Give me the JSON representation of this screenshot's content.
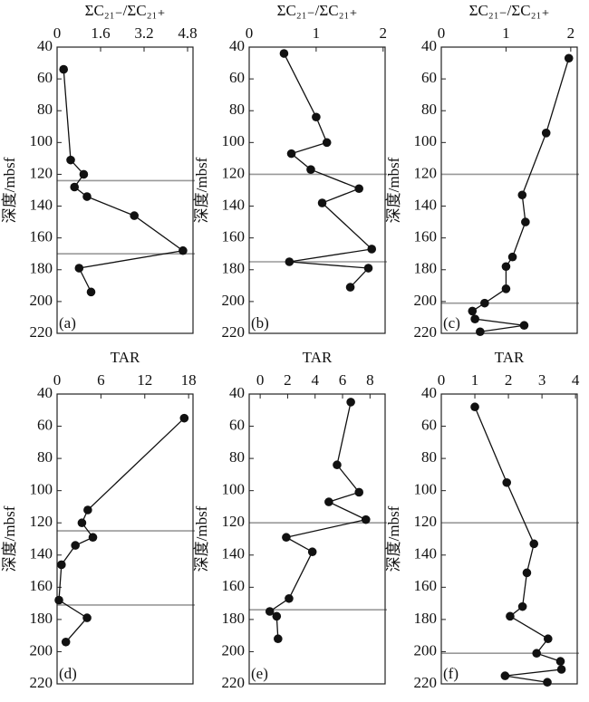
{
  "chart_data": [
    {
      "type": "line",
      "xlabel": "ΣC₂₁₋/ΣC₂₁₊",
      "ylabel": "深度/mbsf",
      "panel_label": "(a)",
      "xlim": [
        0,
        5
      ],
      "xticks": [
        0,
        1.6,
        3.2,
        4.8
      ],
      "ylim": [
        40,
        220
      ],
      "yticks": [
        40,
        60,
        80,
        100,
        120,
        140,
        160,
        180,
        200,
        220
      ],
      "color": "#111",
      "line_color": "#999",
      "hlines": [
        124,
        170
      ],
      "values": [
        0.24,
        0.5,
        0.98,
        0.64,
        1.1,
        2.84,
        4.63,
        0.81,
        1.25
      ],
      "depth": [
        54,
        111,
        120,
        128,
        134,
        146,
        168,
        179,
        194
      ]
    },
    {
      "type": "line",
      "xlabel": "ΣC₂₁₋/ΣC₂₁₊",
      "ylabel": "深度/mbsf",
      "panel_label": "(b)",
      "xlim": [
        0,
        2.03
      ],
      "xticks": [
        0,
        1,
        2
      ],
      "ylim": [
        40,
        220
      ],
      "yticks": [
        40,
        60,
        80,
        100,
        120,
        140,
        160,
        180,
        200,
        220
      ],
      "color": "#111",
      "line_color": "#999",
      "hlines": [
        120,
        175
      ],
      "values": [
        0.52,
        1.0,
        1.16,
        0.63,
        0.92,
        1.64,
        1.09,
        1.83,
        0.6,
        1.78,
        1.51
      ],
      "depth": [
        44,
        84,
        100,
        107,
        117,
        129,
        138,
        167,
        175,
        179,
        191
      ]
    },
    {
      "type": "line",
      "xlabel": "ΣC₂₁₋/ΣC₂₁₊",
      "ylabel": "深度/mbsf",
      "panel_label": "(c)",
      "xlim": [
        0,
        2.1
      ],
      "xticks": [
        0,
        1,
        2
      ],
      "ylim": [
        40,
        220
      ],
      "yticks": [
        40,
        60,
        80,
        100,
        120,
        140,
        160,
        180,
        200,
        220
      ],
      "color": "#111",
      "line_color": "#999",
      "hlines": [
        120,
        201
      ],
      "values": [
        1.97,
        1.62,
        1.25,
        1.3,
        1.1,
        1.0,
        1.0,
        0.67,
        0.48,
        0.52,
        1.28,
        0.6
      ],
      "depth": [
        47,
        94,
        133,
        150,
        172,
        178,
        192,
        201,
        206,
        211,
        215,
        219
      ]
    },
    {
      "type": "line",
      "xlabel": "TAR",
      "ylabel": "深度/mbsf",
      "panel_label": "(d)",
      "xlim": [
        0,
        18.6
      ],
      "xticks": [
        0,
        6,
        12,
        18
      ],
      "ylim": [
        40,
        220
      ],
      "yticks": [
        40,
        60,
        80,
        100,
        120,
        140,
        160,
        180,
        200,
        220
      ],
      "color": "#111",
      "line_color": "#999",
      "hlines": [
        125,
        171
      ],
      "values": [
        17.4,
        4.2,
        3.4,
        4.9,
        2.5,
        0.6,
        0.25,
        4.1,
        1.2
      ],
      "depth": [
        55,
        112,
        120,
        129,
        134,
        146,
        168,
        179,
        194
      ]
    },
    {
      "type": "line",
      "xlabel": "TAR",
      "ylabel": "深度/mbsf",
      "panel_label": "(e)",
      "xlim": [
        -0.8,
        9.1
      ],
      "xticks": [
        0,
        2,
        4,
        6,
        8
      ],
      "ylim": [
        40,
        220
      ],
      "yticks": [
        40,
        60,
        80,
        100,
        120,
        140,
        160,
        180,
        200,
        220
      ],
      "color": "#111",
      "line_color": "#999",
      "hlines": [
        120,
        174
      ],
      "values": [
        6.6,
        5.6,
        7.2,
        5.0,
        7.7,
        1.9,
        3.8,
        2.1,
        0.7,
        1.2,
        1.3
      ],
      "depth": [
        45,
        84,
        101,
        107,
        118,
        129,
        138,
        167,
        175,
        178,
        192
      ]
    },
    {
      "type": "line",
      "xlabel": "TAR",
      "ylabel": "深度/mbsf",
      "panel_label": "(f)",
      "xlim": [
        0,
        4.05
      ],
      "xticks": [
        0,
        1,
        2,
        3,
        4
      ],
      "ylim": [
        40,
        220
      ],
      "yticks": [
        40,
        60,
        80,
        100,
        120,
        140,
        160,
        180,
        200,
        220
      ],
      "color": "#111",
      "line_color": "#999",
      "hlines": [
        120,
        201
      ],
      "values": [
        1.0,
        1.95,
        2.76,
        2.55,
        2.42,
        2.05,
        3.18,
        2.84,
        3.55,
        3.58,
        1.9,
        3.16
      ],
      "depth": [
        48,
        95,
        133,
        151,
        172,
        178,
        192,
        201,
        206,
        211,
        215,
        219
      ]
    }
  ]
}
